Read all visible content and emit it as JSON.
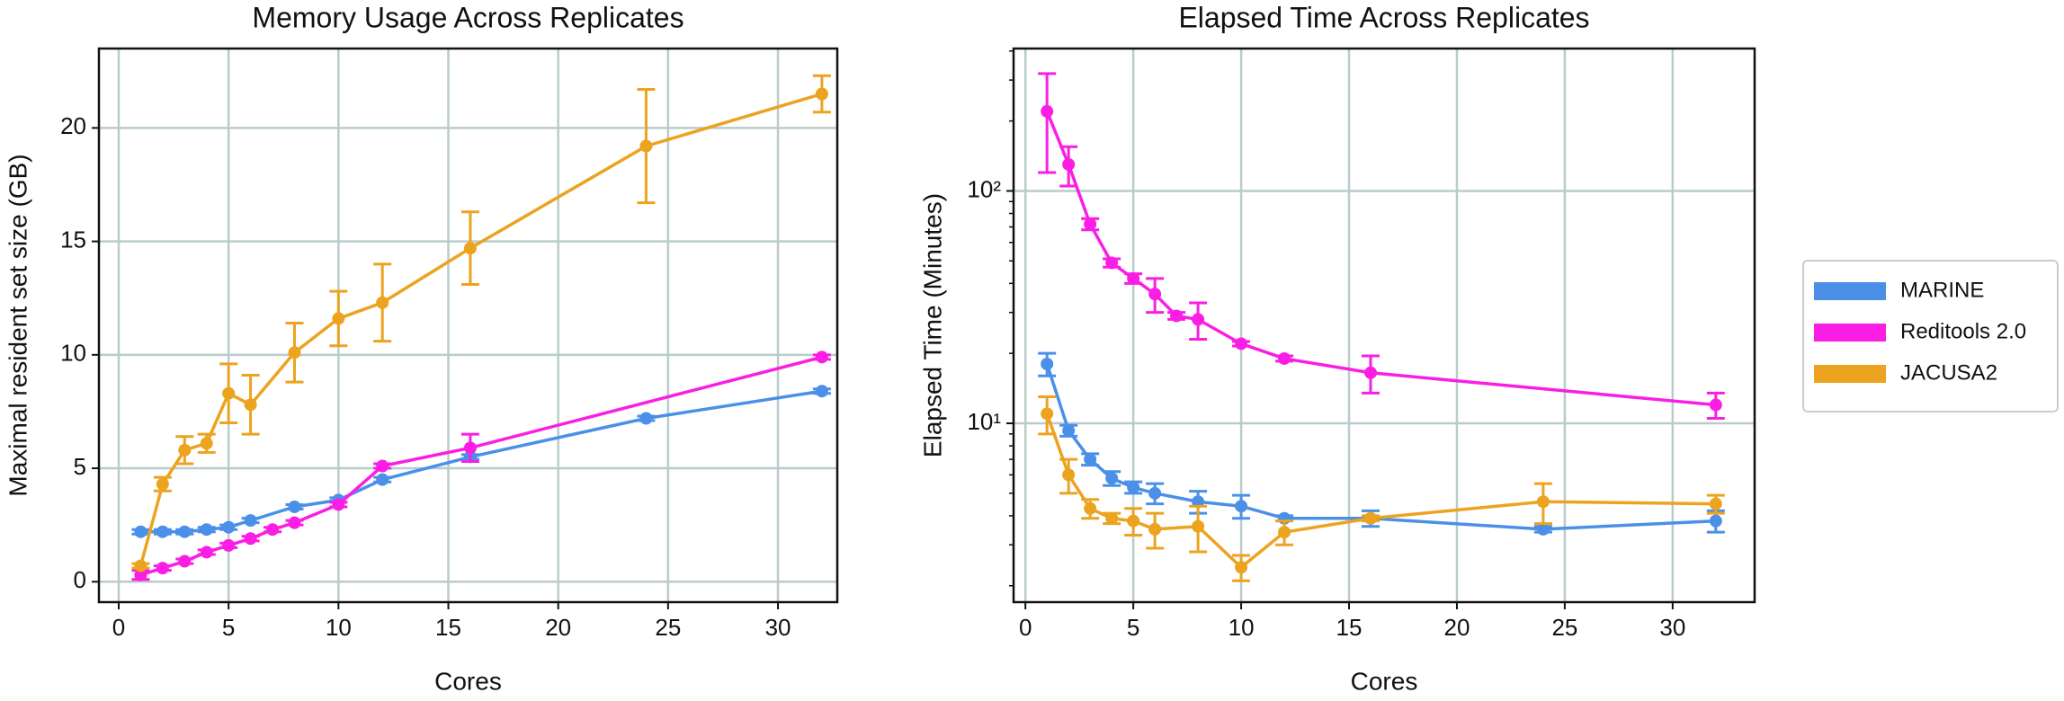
{
  "chart_data": [
    {
      "type": "line",
      "title": "Memory Usage Across Replicates",
      "x_label": "Cores",
      "y_label": "Maximal resident set size (GB)",
      "xlim": [
        -0.9,
        32.7
      ],
      "xticks": [
        0,
        5,
        10,
        15,
        20,
        25,
        30
      ],
      "ylim": [
        -0.9,
        23.5
      ],
      "yticks": [
        0,
        5,
        10,
        15,
        20
      ],
      "grid": true,
      "log_y": false,
      "series": [
        {
          "name": "MARINE",
          "color": "#4a90e8",
          "x": [
            1,
            2,
            3,
            4,
            5,
            6,
            8,
            10,
            12,
            16,
            24,
            32
          ],
          "values": [
            2.2,
            2.2,
            2.2,
            2.3,
            2.4,
            2.7,
            3.3,
            3.6,
            4.5,
            5.5,
            7.2,
            8.4
          ],
          "errors": [
            0.1,
            0.1,
            0.1,
            0.1,
            0.1,
            0.1,
            0.1,
            0.1,
            0.1,
            0.1,
            0.1,
            0.1
          ]
        },
        {
          "name": "Reditools 2.0",
          "color": "#fa1ee4",
          "x": [
            1,
            2,
            3,
            4,
            5,
            6,
            7,
            8,
            10,
            12,
            16,
            32
          ],
          "values": [
            0.3,
            0.6,
            0.9,
            1.3,
            1.6,
            1.9,
            2.3,
            2.6,
            3.4,
            5.1,
            5.9,
            9.9
          ],
          "errors": [
            0.2,
            0.1,
            0.1,
            0.1,
            0.1,
            0.1,
            0.1,
            0.1,
            0.1,
            0.1,
            0.6,
            0.1
          ]
        },
        {
          "name": "JACUSA2",
          "color": "#eca31f",
          "x": [
            1,
            2,
            3,
            4,
            5,
            6,
            8,
            10,
            12,
            16,
            24,
            32
          ],
          "values": [
            0.7,
            4.3,
            5.8,
            6.1,
            8.3,
            7.8,
            10.1,
            11.6,
            12.3,
            14.7,
            19.2,
            21.5
          ],
          "errors": [
            0.1,
            0.3,
            0.6,
            0.4,
            1.3,
            1.3,
            1.3,
            1.2,
            1.7,
            1.6,
            2.5,
            0.8
          ]
        }
      ]
    },
    {
      "type": "line",
      "title": "Elapsed Time Across Replicates",
      "x_label": "Cores",
      "y_label": "Elapsed Time (Minutes)",
      "xlim": [
        -0.55,
        33.8
      ],
      "xticks": [
        0,
        5,
        10,
        15,
        20,
        25,
        30
      ],
      "ylim": [
        1.7,
        410
      ],
      "yticks": [
        {
          "value": 10,
          "label": "10¹"
        },
        {
          "value": 100,
          "label": "10²"
        }
      ],
      "grid": true,
      "log_y": true,
      "legend": "outside-right",
      "series": [
        {
          "name": "MARINE",
          "color": "#4a90e8",
          "x": [
            1,
            2,
            3,
            4,
            5,
            6,
            8,
            10,
            12,
            16,
            24,
            32
          ],
          "values": [
            18,
            9.3,
            7.0,
            5.8,
            5.3,
            5.0,
            4.6,
            4.4,
            3.9,
            3.9,
            3.5,
            3.8
          ],
          "errors": [
            2,
            0.5,
            0.4,
            0.4,
            0.3,
            0.5,
            0.5,
            0.5,
            0.1,
            0.3,
            0.1,
            0.4
          ]
        },
        {
          "name": "Reditools 2.0",
          "color": "#fa1ee4",
          "x": [
            1,
            2,
            3,
            4,
            5,
            6,
            7,
            8,
            10,
            12,
            16,
            32
          ],
          "values": [
            220,
            130,
            72,
            49,
            42,
            36,
            29,
            28,
            22,
            19,
            16.5,
            12
          ],
          "errors": [
            100,
            25,
            4,
            2,
            2,
            6,
            1,
            5,
            0.5,
            0.5,
            3,
            1.5
          ]
        },
        {
          "name": "JACUSA2",
          "color": "#eca31f",
          "x": [
            1,
            2,
            3,
            4,
            5,
            6,
            8,
            10,
            12,
            16,
            24,
            32
          ],
          "values": [
            11,
            6,
            4.3,
            3.9,
            3.8,
            3.5,
            3.6,
            2.4,
            3.4,
            3.9,
            4.6,
            4.5
          ],
          "errors": [
            2,
            1,
            0.4,
            0.2,
            0.5,
            0.6,
            0.8,
            0.3,
            0.4,
            0.1,
            0.9,
            0.4
          ]
        }
      ]
    }
  ]
}
